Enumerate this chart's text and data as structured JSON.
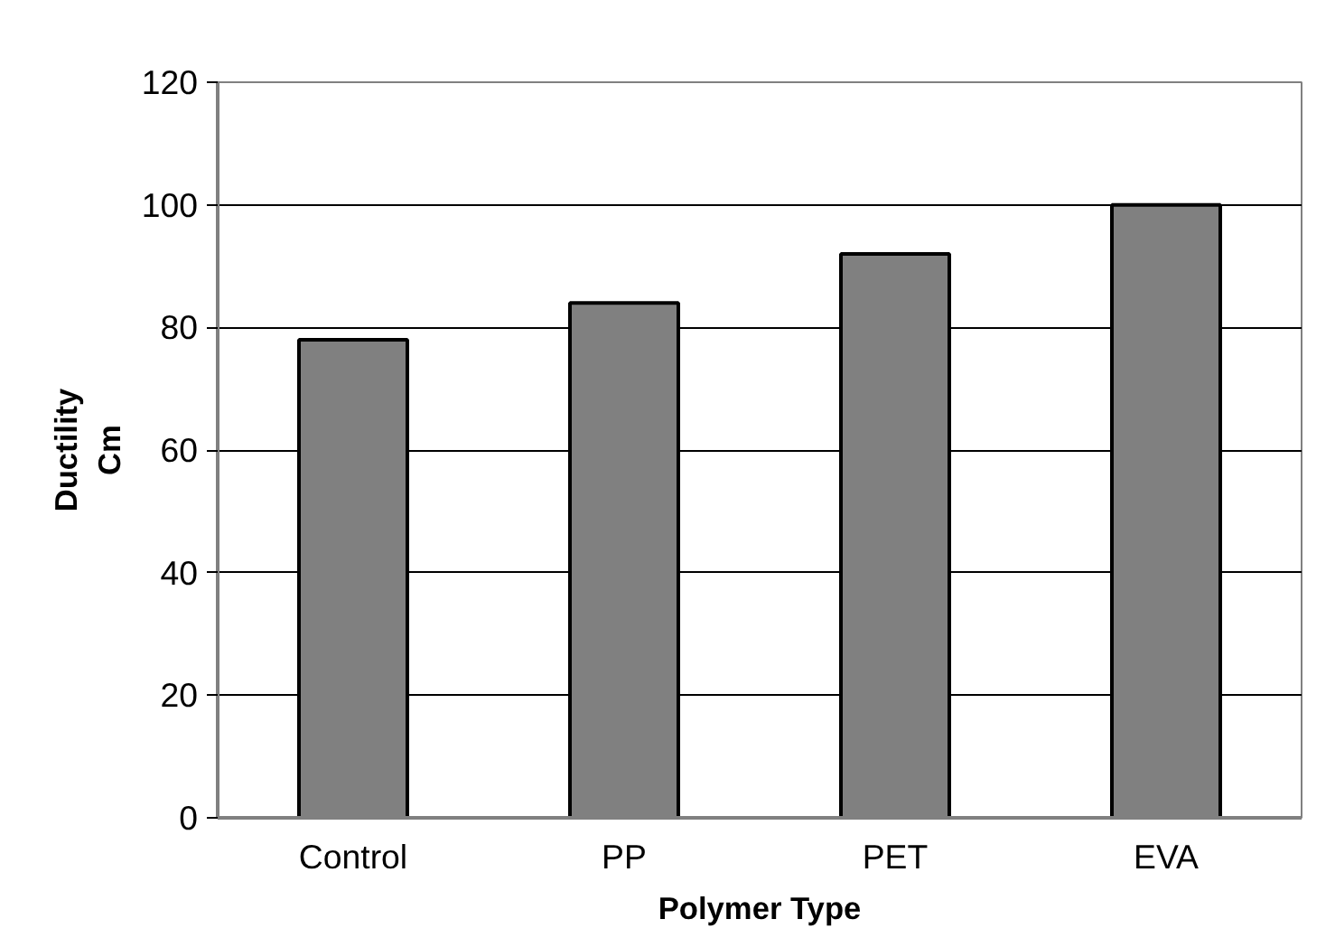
{
  "chart_data": {
    "type": "bar",
    "xlabel": "Polymer Type",
    "ylabel": "Ductility\nCm",
    "categories": [
      "Control",
      "PP",
      "PET",
      "EVA"
    ],
    "values": [
      78,
      84,
      92,
      100
    ],
    "color": "#808080",
    "ylim": [
      0,
      120
    ],
    "yticks": [
      0,
      20,
      40,
      60,
      80,
      100,
      120
    ],
    "grid": "y"
  }
}
